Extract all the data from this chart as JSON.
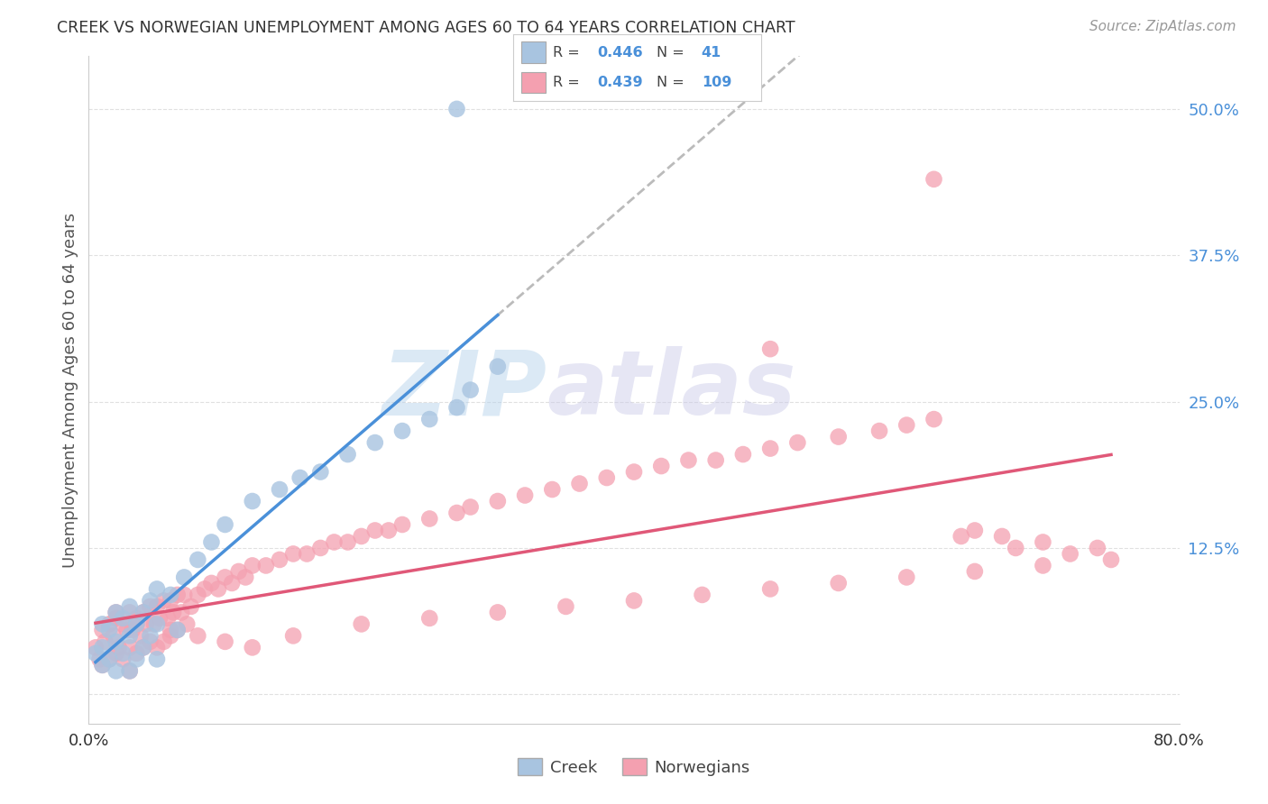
{
  "title": "CREEK VS NORWEGIAN UNEMPLOYMENT AMONG AGES 60 TO 64 YEARS CORRELATION CHART",
  "source": "Source: ZipAtlas.com",
  "ylabel": "Unemployment Among Ages 60 to 64 years",
  "xlim": [
    0.0,
    0.8
  ],
  "ylim": [
    -0.025,
    0.545
  ],
  "yticks": [
    0.0,
    0.125,
    0.25,
    0.375,
    0.5
  ],
  "ytick_labels": [
    "",
    "12.5%",
    "25.0%",
    "37.5%",
    "50.0%"
  ],
  "xticks": [
    0.0,
    0.2,
    0.4,
    0.6,
    0.8
  ],
  "xtick_labels": [
    "0.0%",
    "",
    "",
    "",
    "80.0%"
  ],
  "creek_R": 0.446,
  "creek_N": 41,
  "norwegian_R": 0.439,
  "norwegian_N": 109,
  "creek_color": "#a8c4e0",
  "norwegian_color": "#f4a0b0",
  "creek_line_color": "#4a90d9",
  "norwegian_line_color": "#e05878",
  "trendline_color": "#b0b0b0",
  "background_color": "#ffffff",
  "watermark_zip": "ZIP",
  "watermark_atlas": "atlas",
  "creek_scatter_x": [
    0.005,
    0.01,
    0.01,
    0.01,
    0.015,
    0.015,
    0.02,
    0.02,
    0.02,
    0.025,
    0.025,
    0.03,
    0.03,
    0.03,
    0.035,
    0.035,
    0.04,
    0.04,
    0.045,
    0.045,
    0.05,
    0.05,
    0.05,
    0.06,
    0.065,
    0.07,
    0.08,
    0.09,
    0.1,
    0.12,
    0.14,
    0.155,
    0.17,
    0.19,
    0.21,
    0.23,
    0.25,
    0.27,
    0.28,
    0.3,
    0.27
  ],
  "creek_scatter_y": [
    0.035,
    0.06,
    0.04,
    0.025,
    0.055,
    0.03,
    0.07,
    0.045,
    0.02,
    0.065,
    0.035,
    0.075,
    0.05,
    0.02,
    0.06,
    0.03,
    0.07,
    0.04,
    0.08,
    0.05,
    0.09,
    0.06,
    0.03,
    0.085,
    0.055,
    0.1,
    0.115,
    0.13,
    0.145,
    0.165,
    0.175,
    0.185,
    0.19,
    0.205,
    0.215,
    0.225,
    0.235,
    0.245,
    0.26,
    0.28,
    0.5
  ],
  "norwegian_scatter_x": [
    0.005,
    0.008,
    0.01,
    0.01,
    0.012,
    0.015,
    0.015,
    0.018,
    0.02,
    0.02,
    0.02,
    0.022,
    0.025,
    0.025,
    0.028,
    0.03,
    0.03,
    0.03,
    0.032,
    0.035,
    0.035,
    0.038,
    0.04,
    0.04,
    0.042,
    0.045,
    0.045,
    0.048,
    0.05,
    0.05,
    0.052,
    0.055,
    0.055,
    0.058,
    0.06,
    0.06,
    0.062,
    0.065,
    0.065,
    0.068,
    0.07,
    0.072,
    0.075,
    0.08,
    0.085,
    0.09,
    0.095,
    0.1,
    0.105,
    0.11,
    0.115,
    0.12,
    0.13,
    0.14,
    0.15,
    0.16,
    0.17,
    0.18,
    0.19,
    0.2,
    0.21,
    0.22,
    0.23,
    0.25,
    0.27,
    0.28,
    0.3,
    0.32,
    0.34,
    0.36,
    0.38,
    0.4,
    0.42,
    0.44,
    0.46,
    0.48,
    0.5,
    0.52,
    0.55,
    0.58,
    0.6,
    0.62,
    0.64,
    0.65,
    0.67,
    0.68,
    0.7,
    0.72,
    0.74,
    0.75,
    0.035,
    0.06,
    0.08,
    0.1,
    0.12,
    0.15,
    0.2,
    0.25,
    0.3,
    0.35,
    0.4,
    0.45,
    0.5,
    0.55,
    0.6,
    0.65,
    0.7,
    0.62,
    0.5
  ],
  "norwegian_scatter_y": [
    0.04,
    0.03,
    0.055,
    0.025,
    0.045,
    0.06,
    0.03,
    0.05,
    0.065,
    0.035,
    0.07,
    0.04,
    0.06,
    0.03,
    0.055,
    0.07,
    0.04,
    0.02,
    0.055,
    0.065,
    0.035,
    0.05,
    0.07,
    0.04,
    0.06,
    0.075,
    0.045,
    0.06,
    0.075,
    0.04,
    0.065,
    0.08,
    0.045,
    0.065,
    0.08,
    0.05,
    0.07,
    0.085,
    0.055,
    0.07,
    0.085,
    0.06,
    0.075,
    0.085,
    0.09,
    0.095,
    0.09,
    0.1,
    0.095,
    0.105,
    0.1,
    0.11,
    0.11,
    0.115,
    0.12,
    0.12,
    0.125,
    0.13,
    0.13,
    0.135,
    0.14,
    0.14,
    0.145,
    0.15,
    0.155,
    0.16,
    0.165,
    0.17,
    0.175,
    0.18,
    0.185,
    0.19,
    0.195,
    0.2,
    0.2,
    0.205,
    0.21,
    0.215,
    0.22,
    0.225,
    0.23,
    0.235,
    0.135,
    0.14,
    0.135,
    0.125,
    0.13,
    0.12,
    0.125,
    0.115,
    0.06,
    0.055,
    0.05,
    0.045,
    0.04,
    0.05,
    0.06,
    0.065,
    0.07,
    0.075,
    0.08,
    0.085,
    0.09,
    0.095,
    0.1,
    0.105,
    0.11,
    0.44,
    0.295
  ]
}
